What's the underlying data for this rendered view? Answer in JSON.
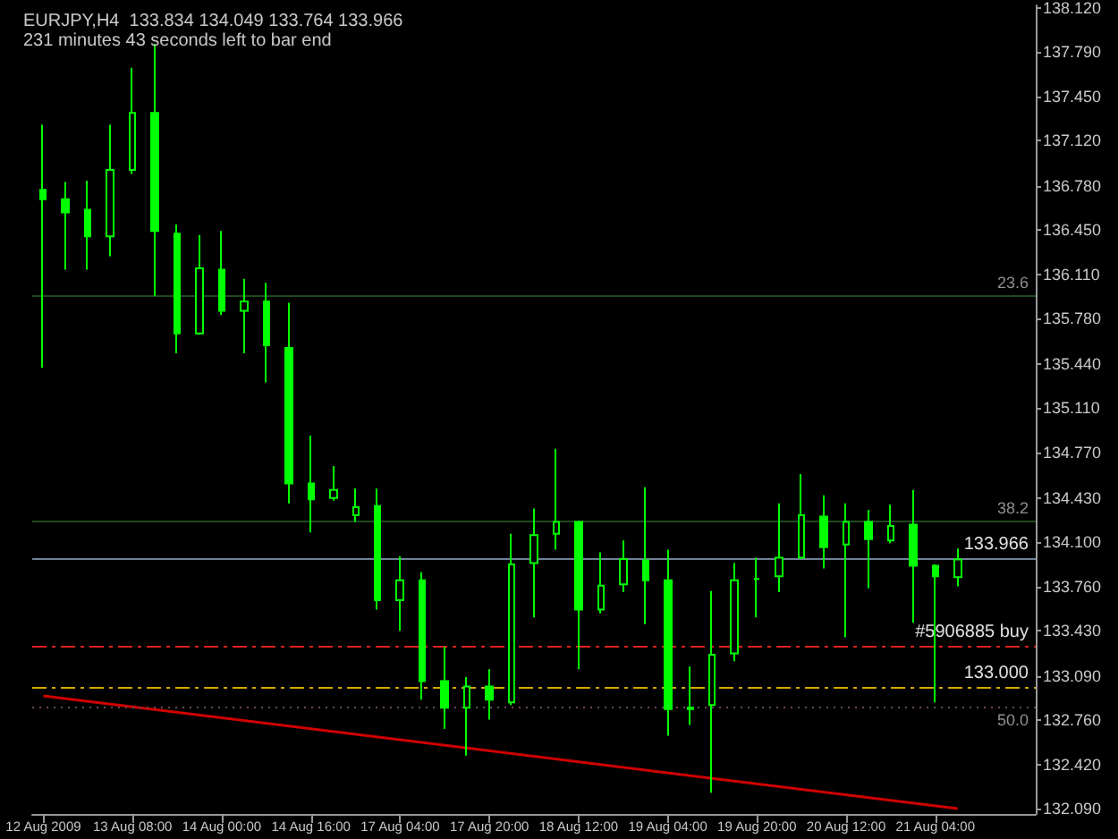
{
  "chart_data": {
    "type": "candlestick",
    "title": "EURJPY,H4  133.834 134.049 133.764 133.966",
    "subtitle": "231 minutes 43 seconds left to bar end",
    "categories": [
      "12 Aug 2009",
      null,
      null,
      null,
      "13 Aug 08:00",
      null,
      null,
      null,
      "14 Aug 00:00",
      null,
      null,
      null,
      "14 Aug 16:00",
      null,
      null,
      null,
      "17 Aug 04:00",
      null,
      null,
      null,
      "17 Aug 20:00",
      null,
      null,
      null,
      "18 Aug 12:00",
      null,
      null,
      null,
      "19 Aug 04:00",
      null,
      null,
      null,
      "19 Aug 20:00",
      null,
      null,
      null,
      "20 Aug 12:00",
      null,
      null,
      null,
      "21 Aug 04:00",
      null
    ],
    "color": "#00ff00",
    "ohlc": [
      [
        136.75,
        137.24,
        135.41,
        136.68
      ],
      [
        136.68,
        136.81,
        136.15,
        136.58
      ],
      [
        136.6,
        136.82,
        136.15,
        136.4
      ],
      [
        136.4,
        137.24,
        136.25,
        136.9
      ],
      [
        136.9,
        137.67,
        136.87,
        137.33
      ],
      [
        137.33,
        137.85,
        135.95,
        136.44
      ],
      [
        136.42,
        136.49,
        135.52,
        135.67
      ],
      [
        135.67,
        136.41,
        135.66,
        136.16
      ],
      [
        136.15,
        136.44,
        135.81,
        135.84
      ],
      [
        135.84,
        136.08,
        135.52,
        135.91
      ],
      [
        135.91,
        136.05,
        135.3,
        135.58
      ],
      [
        135.56,
        135.9,
        134.39,
        134.54
      ],
      [
        134.54,
        134.9,
        134.17,
        134.42
      ],
      [
        134.43,
        134.67,
        134.41,
        134.49
      ],
      [
        134.3,
        134.5,
        134.25,
        134.36
      ],
      [
        134.37,
        134.5,
        133.59,
        133.66
      ],
      [
        133.66,
        133.99,
        133.43,
        133.81
      ],
      [
        133.81,
        133.87,
        132.91,
        133.05
      ],
      [
        133.05,
        133.31,
        132.69,
        132.85
      ],
      [
        132.85,
        133.08,
        132.49,
        133.01
      ],
      [
        133.01,
        133.14,
        132.76,
        132.91
      ],
      [
        132.89,
        134.16,
        132.87,
        133.93
      ],
      [
        133.94,
        134.35,
        133.53,
        134.15
      ],
      [
        134.16,
        134.8,
        134.04,
        134.25
      ],
      [
        134.25,
        134.26,
        133.14,
        133.59
      ],
      [
        133.59,
        134.02,
        133.56,
        133.77
      ],
      [
        133.78,
        134.11,
        133.72,
        133.97
      ],
      [
        133.96,
        134.51,
        133.48,
        133.81
      ],
      [
        133.81,
        134.04,
        132.64,
        132.84
      ],
      [
        132.84,
        133.16,
        132.72,
        132.85
      ],
      [
        132.87,
        133.73,
        132.21,
        133.25
      ],
      [
        133.26,
        133.94,
        133.2,
        133.81
      ],
      [
        133.82,
        133.98,
        133.53,
        133.82
      ],
      [
        133.84,
        134.39,
        133.72,
        133.98
      ],
      [
        133.98,
        134.61,
        133.98,
        134.3
      ],
      [
        134.29,
        134.45,
        133.9,
        134.06
      ],
      [
        134.08,
        134.39,
        133.38,
        134.25
      ],
      [
        134.25,
        134.34,
        133.75,
        134.12
      ],
      [
        134.11,
        134.38,
        134.09,
        134.22
      ],
      [
        134.23,
        134.49,
        133.49,
        133.92
      ],
      [
        133.92,
        133.93,
        132.89,
        133.84
      ],
      [
        133.834,
        134.049,
        133.764,
        133.966
      ]
    ],
    "series": [
      {
        "type": "line",
        "color": "#d00000",
        "values": [
          132.94,
          null,
          null,
          null,
          null,
          null,
          null,
          null,
          null,
          null,
          null,
          null,
          null,
          null,
          null,
          null,
          null,
          null,
          null,
          null,
          null,
          null,
          null,
          null,
          null,
          null,
          null,
          null,
          null,
          null,
          null,
          null,
          null,
          null,
          null,
          null,
          null,
          null,
          null,
          null,
          null,
          132.09
        ]
      }
    ],
    "ylim": [
      132.05,
      138.14
    ],
    "yticks": [
      {
        "value": 132.09,
        "label": "132.090"
      },
      {
        "value": 132.42,
        "label": "132.420"
      },
      {
        "value": 132.76,
        "label": "132.760"
      },
      {
        "value": 133.09,
        "label": "133.090"
      },
      {
        "value": 133.43,
        "label": "133.430"
      },
      {
        "value": 133.76,
        "label": "133.760"
      },
      {
        "value": 134.1,
        "label": "134.100"
      },
      {
        "value": 134.43,
        "label": "134.430"
      },
      {
        "value": 134.77,
        "label": "134.770"
      },
      {
        "value": 135.11,
        "label": "135.110"
      },
      {
        "value": 135.44,
        "label": "135.440"
      },
      {
        "value": 135.78,
        "label": "135.780"
      },
      {
        "value": 136.11,
        "label": "136.110"
      },
      {
        "value": 136.45,
        "label": "136.450"
      },
      {
        "value": 136.78,
        "label": "136.780"
      },
      {
        "value": 137.12,
        "label": "137.120"
      },
      {
        "value": 137.45,
        "label": "137.450"
      },
      {
        "value": 137.79,
        "label": "137.790"
      },
      {
        "value": 138.12,
        "label": "138.120"
      }
    ],
    "annotations": [
      "23.6",
      "38.2",
      "50.0"
    ],
    "ref_lines": [
      {
        "axis": "y",
        "value": 135.95,
        "color": "#1e4a1e",
        "line_style": "solid"
      },
      {
        "axis": "y",
        "value": 134.25,
        "color": "#1e4a1e",
        "line_style": "solid"
      },
      {
        "axis": "y",
        "value": 133.966,
        "label": "133.966",
        "color": "#6f8296",
        "line_style": "solid"
      },
      {
        "axis": "y",
        "value": 133.31,
        "label": "#5906885 buy",
        "color": "#e02020",
        "line_style": "dashed"
      },
      {
        "axis": "y",
        "value": 133.0,
        "label": "133.000",
        "color": "#d4a800",
        "line_style": "dashed"
      },
      {
        "axis": "y",
        "value": 132.86,
        "color": "#6a4a5a",
        "line_style": "dotted"
      }
    ]
  }
}
